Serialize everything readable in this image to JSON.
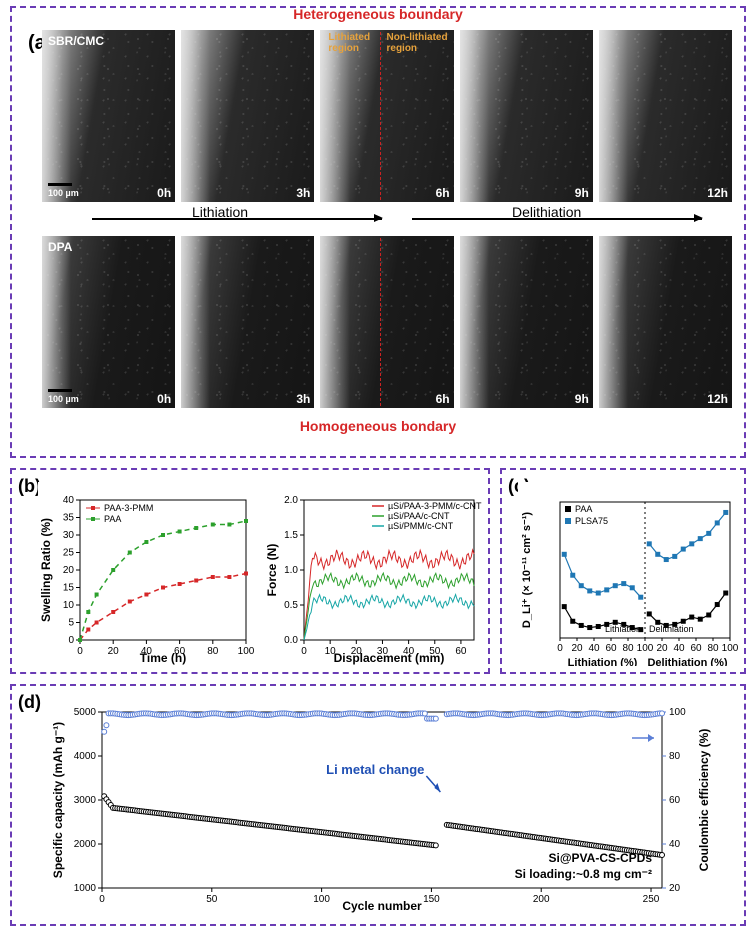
{
  "panel_border_color": "#6a3cb5",
  "background_color": "#ffffff",
  "panel_a": {
    "label": "(a)",
    "top_caption": "Heterogeneous boundary",
    "bottom_caption": "Homogeneous bondary",
    "caption_color": "#d62728",
    "lithiation_label": "Lithiation",
    "delithiation_label": "Delithiation",
    "region_labels": {
      "left": "Lithiated region",
      "right": "Non-lithiated region",
      "color": "#e6a23c"
    },
    "scale_label": "100 µm",
    "rows": [
      {
        "binder": "SBR/CMC",
        "show_dash_idx": 2
      },
      {
        "binder": "DPA",
        "show_dash_idx": 2
      }
    ],
    "timestamps": [
      "0h",
      "3h",
      "6h",
      "9h",
      "12h"
    ]
  },
  "panel_b": {
    "label": "(b)",
    "swelling": {
      "type": "line",
      "xlabel": "Time (h)",
      "ylabel": "Swelling Ratio (%)",
      "xlim": [
        0,
        100
      ],
      "ylim": [
        0,
        40
      ],
      "xtick_step": 20,
      "ytick_step": 5,
      "label_fontsize": 12,
      "series": [
        {
          "name": "PAA-3-PMM",
          "color": "#d62728",
          "dash": "5,4",
          "x": [
            0,
            5,
            10,
            20,
            30,
            40,
            50,
            60,
            70,
            80,
            90,
            100
          ],
          "y": [
            0,
            3,
            5,
            8,
            11,
            13,
            15,
            16,
            17,
            18,
            18,
            19
          ]
        },
        {
          "name": "PAA",
          "color": "#2ca02c",
          "dash": "5,4",
          "x": [
            0,
            5,
            10,
            20,
            30,
            40,
            50,
            60,
            70,
            80,
            90,
            100
          ],
          "y": [
            0,
            8,
            13,
            20,
            25,
            28,
            30,
            31,
            32,
            33,
            33,
            34
          ]
        }
      ]
    },
    "peel": {
      "type": "line",
      "xlabel": "Displacement (mm)",
      "ylabel": "Force (N)",
      "xlim": [
        0,
        65
      ],
      "ylim": [
        0,
        2.0
      ],
      "xtick_step": 10,
      "ytick_step": 0.5,
      "label_fontsize": 12,
      "series": [
        {
          "name": "µSi/PAA-3-PMM/c-CNT",
          "color": "#d62728",
          "base": 1.15,
          "amp": 0.28
        },
        {
          "name": "µSi/PAA/c-CNT",
          "color": "#2ca02c",
          "base": 0.85,
          "amp": 0.22
        },
        {
          "name": "µSi/PMM/c-CNT",
          "color": "#17a6a6",
          "base": 0.55,
          "amp": 0.2
        }
      ]
    }
  },
  "panel_c": {
    "label": "(c)",
    "type": "scatter-line",
    "xlabel_left": "Lithiation (%)",
    "xlabel_right": "Delithiation (%)",
    "ylabel": "D_Li⁺ (× 10⁻¹¹ cm² s⁻¹)",
    "xlim": [
      0,
      100
    ],
    "ytick_labels": [
      "",
      "",
      "",
      "",
      "",
      ""
    ],
    "divider_label_left": "Lithiation",
    "divider_label_right": "Delithiation",
    "series": [
      {
        "name": "PAA",
        "color": "#000000",
        "marker": "square",
        "lith": [
          3.0,
          1.6,
          1.2,
          1.0,
          1.1,
          1.3,
          1.5,
          1.3,
          1.0,
          0.8
        ],
        "delith": [
          2.3,
          1.5,
          1.2,
          1.3,
          1.6,
          2.0,
          1.8,
          2.2,
          3.2,
          4.3
        ]
      },
      {
        "name": "PLSA75",
        "color": "#1f77b4",
        "marker": "square",
        "lith": [
          8.0,
          6.0,
          5.0,
          4.5,
          4.3,
          4.6,
          5.0,
          5.2,
          4.8,
          3.9
        ],
        "delith": [
          9.0,
          8.0,
          7.5,
          7.8,
          8.5,
          9.0,
          9.5,
          10.0,
          11.0,
          12.0
        ]
      }
    ]
  },
  "panel_d": {
    "label": "(d)",
    "type": "scatter",
    "xlabel": "Cycle number",
    "ylabel_left": "Specific capacity (mAh g⁻¹)",
    "ylabel_right": "Coulombic efficiency (%)",
    "xlim": [
      0,
      255
    ],
    "xtick_step": 50,
    "ylim_left": [
      1000,
      5000
    ],
    "ytick_left_step": 1000,
    "ylim_right": [
      20,
      100
    ],
    "ytick_right_step": 20,
    "annotation": "Li metal change",
    "annotation_color": "#1f4fb4",
    "footer1": "Si@PVA-CS-CPDs",
    "footer2": "Si loading:~0.8 mg cm⁻²",
    "capacity_color": "#000000",
    "ce_color": "#5b7fd6",
    "break_at": 155
  }
}
